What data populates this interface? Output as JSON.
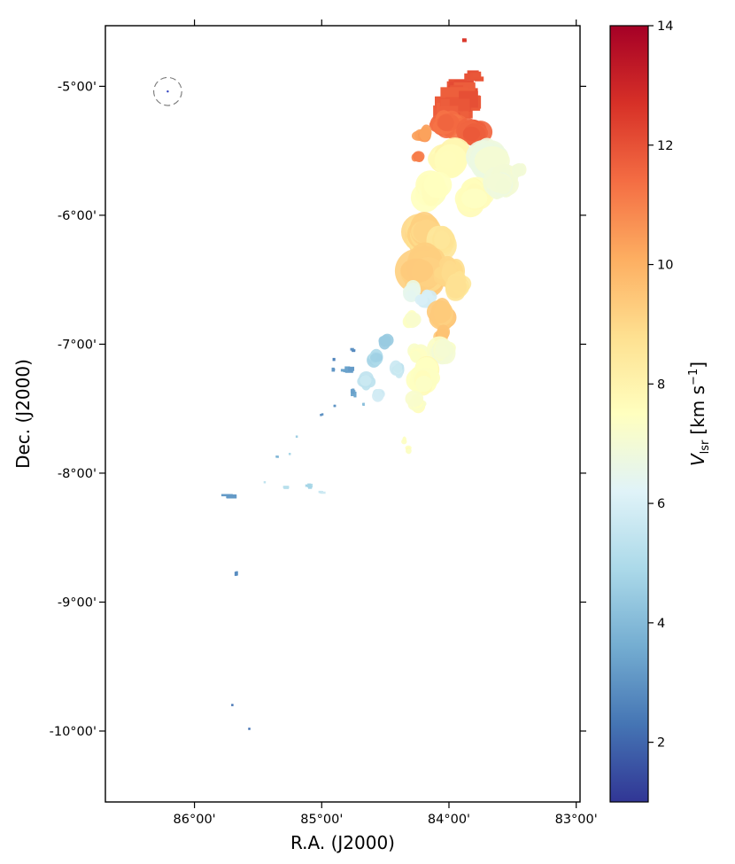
{
  "chart_data": {
    "type": "scatter",
    "xlabel": "R.A. (J2000)",
    "ylabel": "Dec. (J2000)",
    "x_unit": "deg",
    "y_unit": "deg",
    "xlim": [
      86.7,
      82.97
    ],
    "ylim": [
      -10.55,
      -4.53
    ],
    "x_ticks": [
      86,
      85,
      84,
      83
    ],
    "x_tick_labels": [
      "86°00'",
      "85°00'",
      "84°00'",
      "83°00'"
    ],
    "y_ticks": [
      -5,
      -6,
      -7,
      -8,
      -9,
      -10
    ],
    "y_tick_labels": [
      "-5°00'",
      "-6°00'",
      "-7°00'",
      "-8°00'",
      "-9°00'",
      "-10°00'"
    ],
    "colorbar": {
      "label_main": "V",
      "label_sub": "lsr",
      "label_units": "[km s",
      "label_exp": "−1",
      "label_close": "]",
      "range": [
        1,
        14
      ],
      "ticks": [
        2,
        4,
        6,
        8,
        10,
        12,
        14
      ],
      "tick_labels": [
        "2",
        "4",
        "6",
        "8",
        "10",
        "12",
        "14"
      ],
      "colormap": "RdYlBu_r",
      "colors": [
        "#313695",
        "#4575b4",
        "#74add1",
        "#abd9e9",
        "#e0f3f8",
        "#ffffbf",
        "#fee090",
        "#fdae61",
        "#f46d43",
        "#d73027",
        "#a50026"
      ]
    },
    "beam": {
      "ra": 86.21,
      "dec": -5.04,
      "radius_deg": 0.11
    },
    "clumps": [
      {
        "ra": 83.88,
        "dec": -4.64,
        "sra": 0.03,
        "sdec": 0.02,
        "v": 12.6,
        "n": 3,
        "shape": "rect"
      },
      {
        "ra": 83.9,
        "dec": -5.05,
        "sra": 0.14,
        "sdec": 0.1,
        "v": 12.0,
        "n": 30,
        "shape": "rect"
      },
      {
        "ra": 83.95,
        "dec": -5.15,
        "sra": 0.18,
        "sdec": 0.12,
        "v": 11.8,
        "n": 40,
        "shape": "rect"
      },
      {
        "ra": 83.8,
        "dec": -4.92,
        "sra": 0.07,
        "sdec": 0.05,
        "v": 11.9,
        "n": 12,
        "shape": "rect"
      },
      {
        "ra": 84.0,
        "dec": -5.3,
        "sra": 0.16,
        "sdec": 0.08,
        "v": 11.4,
        "n": 30,
        "shape": "ellipse"
      },
      {
        "ra": 83.8,
        "dec": -5.35,
        "sra": 0.1,
        "sdec": 0.09,
        "v": 11.7,
        "n": 20,
        "shape": "ellipse"
      },
      {
        "ra": 84.2,
        "dec": -5.38,
        "sra": 0.08,
        "sdec": 0.05,
        "v": 10.5,
        "n": 12,
        "shape": "ellipse"
      },
      {
        "ra": 84.25,
        "dec": -5.55,
        "sra": 0.04,
        "sdec": 0.05,
        "v": 11.0,
        "n": 5,
        "shape": "ellipse"
      },
      {
        "ra": 84.0,
        "dec": -5.55,
        "sra": 0.15,
        "sdec": 0.1,
        "v": 7.8,
        "n": 30,
        "shape": "ellipse"
      },
      {
        "ra": 83.7,
        "dec": -5.55,
        "sra": 0.12,
        "sdec": 0.12,
        "v": 6.8,
        "n": 22,
        "shape": "ellipse"
      },
      {
        "ra": 84.15,
        "dec": -5.8,
        "sra": 0.1,
        "sdec": 0.12,
        "v": 7.5,
        "n": 22,
        "shape": "ellipse"
      },
      {
        "ra": 83.8,
        "dec": -5.85,
        "sra": 0.1,
        "sdec": 0.1,
        "v": 7.6,
        "n": 18,
        "shape": "ellipse"
      },
      {
        "ra": 83.6,
        "dec": -5.75,
        "sra": 0.1,
        "sdec": 0.12,
        "v": 7.0,
        "n": 15,
        "shape": "ellipse"
      },
      {
        "ra": 83.45,
        "dec": -5.65,
        "sra": 0.05,
        "sdec": 0.05,
        "v": 7.0,
        "n": 6,
        "shape": "ellipse"
      },
      {
        "ra": 84.2,
        "dec": -6.15,
        "sra": 0.12,
        "sdec": 0.15,
        "v": 9.0,
        "n": 30,
        "shape": "ellipse"
      },
      {
        "ra": 84.05,
        "dec": -6.2,
        "sra": 0.09,
        "sdec": 0.1,
        "v": 8.6,
        "n": 20,
        "shape": "ellipse"
      },
      {
        "ra": 84.18,
        "dec": -6.45,
        "sra": 0.14,
        "sdec": 0.15,
        "v": 9.2,
        "n": 32,
        "shape": "ellipse"
      },
      {
        "ra": 84.0,
        "dec": -6.45,
        "sra": 0.09,
        "sdec": 0.12,
        "v": 9.0,
        "n": 20,
        "shape": "ellipse"
      },
      {
        "ra": 84.3,
        "dec": -6.6,
        "sra": 0.06,
        "sdec": 0.07,
        "v": 6.5,
        "n": 12,
        "shape": "ellipse"
      },
      {
        "ra": 84.18,
        "dec": -6.65,
        "sra": 0.07,
        "sdec": 0.06,
        "v": 6.0,
        "n": 12,
        "shape": "ellipse"
      },
      {
        "ra": 84.05,
        "dec": -6.78,
        "sra": 0.09,
        "sdec": 0.1,
        "v": 9.3,
        "n": 20,
        "shape": "ellipse"
      },
      {
        "ra": 83.92,
        "dec": -6.55,
        "sra": 0.08,
        "sdec": 0.1,
        "v": 8.6,
        "n": 15,
        "shape": "ellipse"
      },
      {
        "ra": 84.05,
        "dec": -6.92,
        "sra": 0.05,
        "sdec": 0.05,
        "v": 9.6,
        "n": 8,
        "shape": "ellipse"
      },
      {
        "ra": 84.3,
        "dec": -6.8,
        "sra": 0.08,
        "sdec": 0.06,
        "v": 7.3,
        "n": 10,
        "shape": "ellipse"
      },
      {
        "ra": 84.05,
        "dec": -7.05,
        "sra": 0.1,
        "sdec": 0.08,
        "v": 7.2,
        "n": 16,
        "shape": "ellipse"
      },
      {
        "ra": 84.25,
        "dec": -7.08,
        "sra": 0.07,
        "sdec": 0.06,
        "v": 7.4,
        "n": 10,
        "shape": "ellipse"
      },
      {
        "ra": 84.2,
        "dec": -7.25,
        "sra": 0.1,
        "sdec": 0.12,
        "v": 7.5,
        "n": 16,
        "shape": "ellipse"
      },
      {
        "ra": 84.25,
        "dec": -7.45,
        "sra": 0.06,
        "sdec": 0.07,
        "v": 7.3,
        "n": 8,
        "shape": "ellipse"
      },
      {
        "ra": 84.32,
        "dec": -7.82,
        "sra": 0.025,
        "sdec": 0.05,
        "v": 7.6,
        "n": 5,
        "shape": "ellipse"
      },
      {
        "ra": 84.35,
        "dec": -7.75,
        "sra": 0.015,
        "sdec": 0.03,
        "v": 7.4,
        "n": 3,
        "shape": "ellipse"
      },
      {
        "ra": 84.5,
        "dec": -6.98,
        "sra": 0.07,
        "sdec": 0.04,
        "v": 4.5,
        "n": 10,
        "shape": "ellipse"
      },
      {
        "ra": 84.58,
        "dec": -7.1,
        "sra": 0.07,
        "sdec": 0.05,
        "v": 4.9,
        "n": 10,
        "shape": "ellipse"
      },
      {
        "ra": 84.4,
        "dec": -7.2,
        "sra": 0.06,
        "sdec": 0.05,
        "v": 5.6,
        "n": 8,
        "shape": "ellipse"
      },
      {
        "ra": 84.65,
        "dec": -7.28,
        "sra": 0.06,
        "sdec": 0.05,
        "v": 5.4,
        "n": 8,
        "shape": "ellipse"
      },
      {
        "ra": 84.55,
        "dec": -7.4,
        "sra": 0.05,
        "sdec": 0.04,
        "v": 5.8,
        "n": 6,
        "shape": "ellipse"
      },
      {
        "ra": 84.75,
        "dec": -7.05,
        "sra": 0.03,
        "sdec": 0.02,
        "v": 2.9,
        "n": 4,
        "shape": "rect"
      },
      {
        "ra": 84.9,
        "dec": -7.12,
        "sra": 0.02,
        "sdec": 0.02,
        "v": 2.7,
        "n": 2,
        "shape": "rect"
      },
      {
        "ra": 84.9,
        "dec": -7.2,
        "sra": 0.03,
        "sdec": 0.02,
        "v": 2.9,
        "n": 3,
        "shape": "rect"
      },
      {
        "ra": 84.8,
        "dec": -7.2,
        "sra": 0.05,
        "sdec": 0.03,
        "v": 3.3,
        "n": 6,
        "shape": "rect"
      },
      {
        "ra": 84.75,
        "dec": -7.38,
        "sra": 0.03,
        "sdec": 0.04,
        "v": 3.3,
        "n": 5,
        "shape": "rect"
      },
      {
        "ra": 84.9,
        "dec": -7.48,
        "sra": 0.015,
        "sdec": 0.02,
        "v": 3.1,
        "n": 2,
        "shape": "rect"
      },
      {
        "ra": 84.67,
        "dec": -7.47,
        "sra": 0.015,
        "sdec": 0.02,
        "v": 4.2,
        "n": 2,
        "shape": "rect"
      },
      {
        "ra": 85.0,
        "dec": -7.55,
        "sra": 0.015,
        "sdec": 0.015,
        "v": 2.9,
        "n": 2,
        "shape": "rect"
      },
      {
        "ra": 85.2,
        "dec": -7.72,
        "sra": 0.01,
        "sdec": 0.01,
        "v": 4.5,
        "n": 1,
        "shape": "rect"
      },
      {
        "ra": 85.35,
        "dec": -7.87,
        "sra": 0.015,
        "sdec": 0.01,
        "v": 4.0,
        "n": 2,
        "shape": "rect"
      },
      {
        "ra": 85.25,
        "dec": -7.85,
        "sra": 0.01,
        "sdec": 0.01,
        "v": 4.8,
        "n": 1,
        "shape": "rect"
      },
      {
        "ra": 85.0,
        "dec": -8.15,
        "sra": 0.035,
        "sdec": 0.015,
        "v": 5.6,
        "n": 4,
        "shape": "rect"
      },
      {
        "ra": 85.1,
        "dec": -8.1,
        "sra": 0.035,
        "sdec": 0.025,
        "v": 4.8,
        "n": 4,
        "shape": "rect"
      },
      {
        "ra": 85.27,
        "dec": -8.11,
        "sra": 0.035,
        "sdec": 0.015,
        "v": 5.3,
        "n": 4,
        "shape": "rect"
      },
      {
        "ra": 85.45,
        "dec": -8.07,
        "sra": 0.01,
        "sdec": 0.01,
        "v": 5.5,
        "n": 1,
        "shape": "rect"
      },
      {
        "ra": 85.72,
        "dec": -8.18,
        "sra": 0.07,
        "sdec": 0.025,
        "v": 3.2,
        "n": 3,
        "shape": "rect"
      },
      {
        "ra": 85.67,
        "dec": -8.78,
        "sra": 0.015,
        "sdec": 0.04,
        "v": 2.8,
        "n": 2,
        "shape": "rect"
      },
      {
        "ra": 85.7,
        "dec": -9.8,
        "sra": 0.006,
        "sdec": 0.007,
        "v": 2.5,
        "n": 1,
        "shape": "rect"
      },
      {
        "ra": 85.57,
        "dec": -9.98,
        "sra": 0.006,
        "sdec": 0.007,
        "v": 2.4,
        "n": 1,
        "shape": "rect"
      }
    ]
  }
}
